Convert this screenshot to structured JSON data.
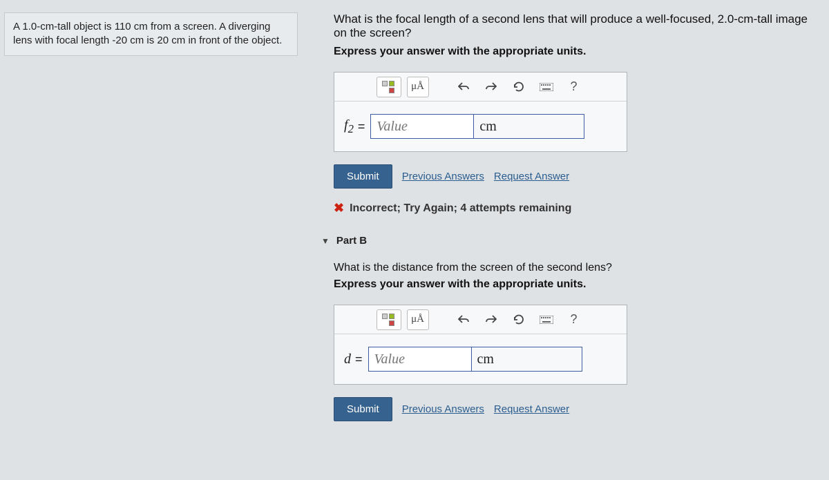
{
  "problem_statement": "A 1.0-cm-tall object is 110 cm from a screen. A diverging lens with focal length -20 cm is 20 cm in front of the object.",
  "partA": {
    "question": "What is the focal length of a second lens that will produce a well-focused, 2.0-cm-tall image on the screen?",
    "instruction": "Express your answer with the appropriate units.",
    "toolbar": {
      "units_label": "μÅ",
      "help_label": "?"
    },
    "var_html": "f<sub>2</sub>",
    "eq": "=",
    "value_placeholder": "Value",
    "units_value": "cm",
    "submit_label": "Submit",
    "prev_link": "Previous Answers",
    "req_link": "Request Answer",
    "feedback": "Incorrect; Try Again; 4 attempts remaining"
  },
  "partB": {
    "header": "Part B",
    "question": "What is the distance from the screen of the second lens?",
    "instruction": "Express your answer with the appropriate units.",
    "toolbar": {
      "units_label": "μÅ",
      "help_label": "?"
    },
    "var": "d",
    "eq": "=",
    "value_placeholder": "Value",
    "units_value": "cm",
    "submit_label": "Submit",
    "prev_link": "Previous Answers",
    "req_link": "Request Answer"
  }
}
